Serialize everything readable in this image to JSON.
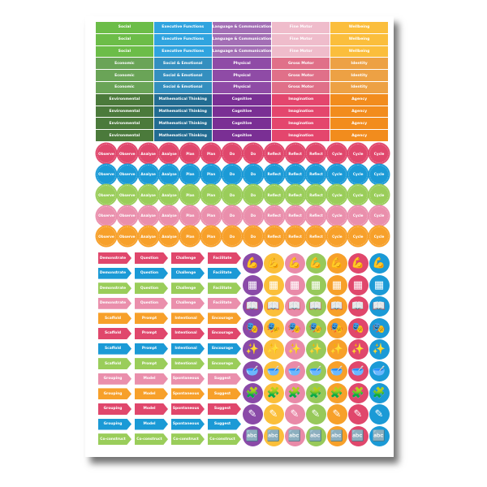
{
  "table": {
    "columns": [
      {
        "labels": [
          "Social",
          "Social",
          "Social",
          "Economic",
          "Economic",
          "Economic",
          "Environmental",
          "Environmental",
          "Environmental",
          "Environmental"
        ],
        "colors": [
          "#6cbd48",
          "#6cbd48",
          "#6cbd48",
          "#6aa457",
          "#6aa457",
          "#6aa457",
          "#4b7a3b",
          "#4b7a3b",
          "#4b7a3b",
          "#4b7a3b"
        ]
      },
      {
        "labels": [
          "Executive Functions",
          "Executive Functions",
          "Executive Functions",
          "Social & Emotional",
          "Social & Emotional",
          "Social & Emotional",
          "Mathematical Thinking",
          "Mathematical Thinking",
          "Mathematical Thinking",
          "Mathematical Thinking"
        ],
        "colors": [
          "#30a4df",
          "#30a4df",
          "#30a4df",
          "#348fbf",
          "#348fbf",
          "#348fbf",
          "#226c92",
          "#226c92",
          "#226c92",
          "#226c92"
        ]
      },
      {
        "labels": [
          "Language & Communication",
          "Language & Communication",
          "Language & Communication",
          "Physical",
          "Physical",
          "Physical",
          "Cognitive",
          "Cognitive",
          "Cognitive",
          "Cognitive"
        ],
        "colors": [
          "#a36fb5",
          "#a36fb5",
          "#a36fb5",
          "#8f4ba6",
          "#8f4ba6",
          "#8f4ba6",
          "#7a2f94",
          "#7a2f94",
          "#7a2f94",
          "#7a2f94"
        ]
      },
      {
        "labels": [
          "Fine Motor",
          "Fine Motor",
          "Fine Motor",
          "Gross Motor",
          "Gross Motor",
          "Gross Motor",
          "Imagination",
          "Imagination",
          "Imagination",
          "Imagination"
        ],
        "colors": [
          "#efbccb",
          "#efbccb",
          "#efbccb",
          "#e07089",
          "#e07089",
          "#e07089",
          "#e4466d",
          "#e4466d",
          "#e4466d",
          "#e4466d"
        ]
      },
      {
        "labels": [
          "Wellbeing",
          "Wellbeing",
          "Wellbeing",
          "Identity",
          "Identity",
          "Identity",
          "Agency",
          "Agency",
          "Agency",
          "Agency"
        ],
        "colors": [
          "#fbbe3c",
          "#fbbe3c",
          "#fbbe3c",
          "#eda144",
          "#eda144",
          "#eda144",
          "#f28c1d",
          "#f28c1d",
          "#f28c1d",
          "#f28c1d"
        ]
      }
    ]
  },
  "badges": {
    "labels": [
      "Observe",
      "Observe",
      "Analyse",
      "Analyse",
      "Plan",
      "Plan",
      "Do",
      "Do",
      "Reflect",
      "Reflect",
      "Reflect",
      "Cycle",
      "Cycle",
      "Cycle"
    ],
    "row_colors": [
      "#e0476c",
      "#1b9ad6",
      "#9acd5a",
      "#ea8fac",
      "#f7a02a"
    ]
  },
  "arrows": {
    "rows": [
      {
        "labels": [
          "Demonstrate",
          "Question",
          "Challenge",
          "Facilitate"
        ],
        "color": "#e0476c"
      },
      {
        "labels": [
          "Demonstrate",
          "Question",
          "Challenge",
          "Facilitate"
        ],
        "color": "#1b9ad6"
      },
      {
        "labels": [
          "Demonstrate",
          "Question",
          "Challenge",
          "Facilitate"
        ],
        "color": "#9acd5a"
      },
      {
        "labels": [
          "Demonstrate",
          "Question",
          "Challenge",
          "Facilitate"
        ],
        "color": "#ea8fac"
      },
      {
        "labels": [
          "Scaffold",
          "Prompt",
          "Intentional",
          "Encourage"
        ],
        "color": "#f7a02a"
      },
      {
        "labels": [
          "Scaffold",
          "Prompt",
          "Intentional",
          "Encourage"
        ],
        "color": "#e0476c"
      },
      {
        "labels": [
          "Scaffold",
          "Prompt",
          "Intentional",
          "Encourage"
        ],
        "color": "#1b9ad6"
      },
      {
        "labels": [
          "Scaffold",
          "Prompt",
          "Intentional",
          "Encourage"
        ],
        "color": "#9acd5a"
      },
      {
        "labels": [
          "Grouping",
          "Model",
          "Spontaneous",
          "Suggest"
        ],
        "color": "#ea8fac"
      },
      {
        "labels": [
          "Grouping",
          "Model",
          "Spontaneous",
          "Suggest"
        ],
        "color": "#f7a02a"
      },
      {
        "labels": [
          "Grouping",
          "Model",
          "Spontaneous",
          "Suggest"
        ],
        "color": "#e0476c"
      },
      {
        "labels": [
          "Grouping",
          "Model",
          "Spontaneous",
          "Suggest"
        ],
        "color": "#1b9ad6"
      },
      {
        "labels": [
          "Co-construct",
          "Co-construct",
          "Co-construct",
          "Co-construct"
        ],
        "color": "#9acd5a"
      }
    ]
  },
  "icon_stickers": {
    "column_colors": [
      "#8a4aa8",
      "#fbbf3a",
      "#e98aa8",
      "#97c95a",
      "#f7a02a",
      "#e0476c",
      "#1b9ad6"
    ],
    "row_icons": [
      {
        "name": "flexed-arm-icon",
        "glyph": "💪"
      },
      {
        "name": "blocks-icon",
        "glyph": "▦"
      },
      {
        "name": "open-book-icon",
        "glyph": "📖"
      },
      {
        "name": "theatre-masks-icon",
        "glyph": "🎭"
      },
      {
        "name": "sparkle-figure-icon",
        "glyph": "✨"
      },
      {
        "name": "mixing-bowl-icon",
        "glyph": "🥣"
      },
      {
        "name": "puzzle-icon",
        "glyph": "🧩"
      },
      {
        "name": "drawing-icon",
        "glyph": "✎"
      },
      {
        "name": "alphabet-blocks-icon",
        "glyph": "🔤"
      }
    ]
  }
}
